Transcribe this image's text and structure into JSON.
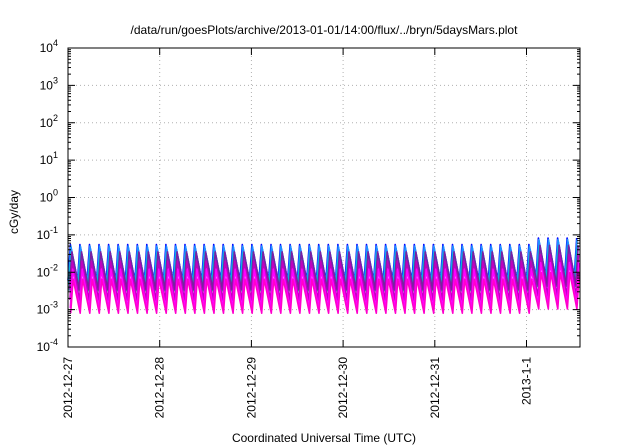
{
  "chart_data": {
    "type": "line",
    "title": "/data/run/goesPlots/archive/2013-01-01/14:00/flux/../bryn/5daysMars.plot",
    "xlabel": "Coordinated Universal Time (UTC)",
    "ylabel": "cGy/day",
    "yscale": "log",
    "ylim": [
      0.0001,
      10000
    ],
    "xlim": [
      "2012-12-27 00:00",
      "2013-01-01 14:00"
    ],
    "grid": true,
    "x_ticks": [
      {
        "value": "2012-12-27",
        "label": "2012-12-27"
      },
      {
        "value": "2012-12-28",
        "label": "2012-12-28"
      },
      {
        "value": "2012-12-29",
        "label": "2012-12-29"
      },
      {
        "value": "2012-12-30",
        "label": "2012-12-30"
      },
      {
        "value": "2012-12-31",
        "label": "2012-12-31"
      },
      {
        "value": "2013-01-01",
        "label": "2013-1-1"
      }
    ],
    "y_ticks": [
      {
        "value": 0.0001,
        "base": "10",
        "exp": "-4"
      },
      {
        "value": 0.001,
        "base": "10",
        "exp": "-3"
      },
      {
        "value": 0.01,
        "base": "10",
        "exp": "-2"
      },
      {
        "value": 0.1,
        "base": "10",
        "exp": "-1"
      },
      {
        "value": 1,
        "base": "10",
        "exp": "0"
      },
      {
        "value": 10,
        "base": "10",
        "exp": "1"
      },
      {
        "value": 100,
        "base": "10",
        "exp": "2"
      },
      {
        "value": 1000,
        "base": "10",
        "exp": "3"
      },
      {
        "value": 10000,
        "base": "10",
        "exp": "4"
      }
    ],
    "pattern": {
      "start": "2012-12-27 00:00",
      "end": "2013-01-01 14:00",
      "period_hours": 2.5,
      "event_start": "2013-01-01 00:30",
      "event_peak_factor": 1.5
    },
    "series": [
      {
        "color": "#0000ff",
        "peak": 0.055,
        "trough": 0.006
      },
      {
        "color": "#1e90ff",
        "peak": 0.05,
        "trough": 0.0055
      },
      {
        "color": "#00bcd4",
        "peak": 0.033,
        "trough": 0.0045
      },
      {
        "color": "#2aa198",
        "peak": 0.022,
        "trough": 0.0032
      },
      {
        "color": "#7b1fa2",
        "peak": 0.035,
        "trough": 0.0035
      },
      {
        "color": "#c000c0",
        "peak": 0.02,
        "trough": 0.0018
      },
      {
        "color": "#ff00ff",
        "peak": 0.012,
        "trough": 0.0011
      },
      {
        "color": "#ff00cc",
        "peak": 0.0065,
        "trough": 0.0008
      }
    ]
  }
}
